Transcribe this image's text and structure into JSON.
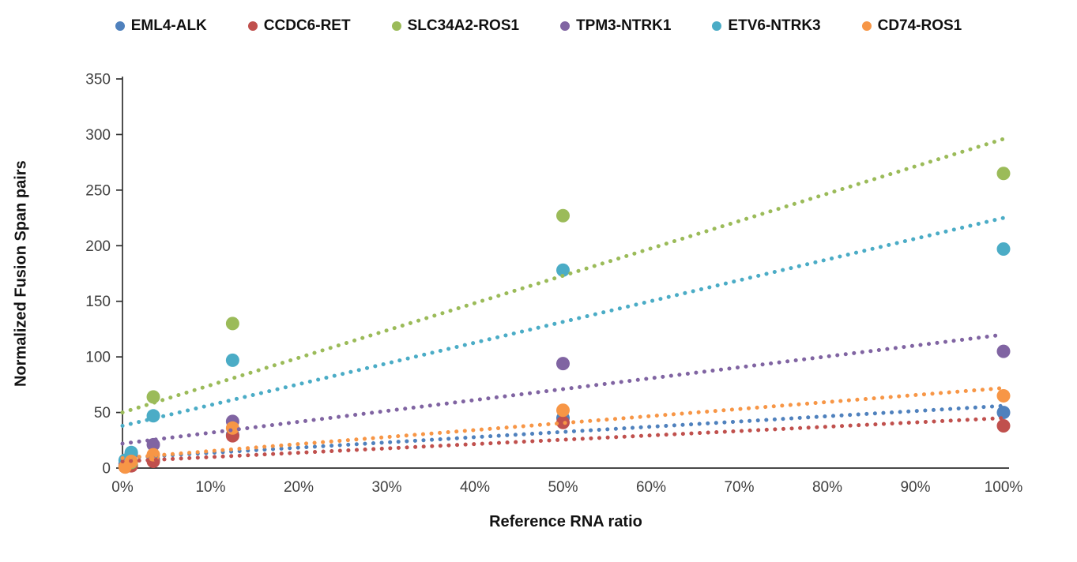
{
  "chart_data": {
    "type": "scatter",
    "title": "",
    "xlabel": "Reference RNA ratio",
    "ylabel": "Normalized Fusion Span pairs",
    "xlim": [
      0,
      100
    ],
    "ylim": [
      0,
      350
    ],
    "x_unit": "%",
    "grid": false,
    "legend_position": "top",
    "marker": "circle",
    "trendline_style": "dotted",
    "x_ticks": [
      0,
      10,
      20,
      30,
      40,
      50,
      60,
      70,
      80,
      90,
      100
    ],
    "x_tick_labels": [
      "0%",
      "10%",
      "20%",
      "30%",
      "40%",
      "50%",
      "60%",
      "70%",
      "80%",
      "90%",
      "100%"
    ],
    "y_ticks": [
      0,
      50,
      100,
      150,
      200,
      250,
      300,
      350
    ],
    "y_tick_labels": [
      "0",
      "50",
      "100",
      "150",
      "200",
      "250",
      "300",
      "350"
    ],
    "x_values_percent": [
      0.3,
      1,
      3.5,
      12.5,
      50,
      100
    ],
    "series": [
      {
        "name": "EML4-ALK",
        "color": "#4F81BD",
        "values": [
          2,
          3,
          8,
          30,
          45,
          50
        ],
        "trendline": {
          "y_at_0": 9,
          "y_at_100": 56
        }
      },
      {
        "name": "CCDC6-RET",
        "color": "#C0504D",
        "values": [
          1,
          2,
          6,
          29,
          41,
          38
        ],
        "trendline": {
          "y_at_0": 6,
          "y_at_100": 45
        }
      },
      {
        "name": "SLC34A2-ROS1",
        "color": "#9BBB59",
        "values": [
          2,
          5,
          64,
          130,
          227,
          265
        ],
        "trendline": {
          "y_at_0": 50,
          "y_at_100": 296
        }
      },
      {
        "name": "TPM3-NTRK1",
        "color": "#8064A2",
        "values": [
          4,
          13,
          21,
          42,
          94,
          105
        ],
        "trendline": {
          "y_at_0": 22,
          "y_at_100": 120
        }
      },
      {
        "name": "ETV6-NTRK3",
        "color": "#4BACC6",
        "values": [
          7,
          14,
          47,
          97,
          178,
          197
        ],
        "trendline": {
          "y_at_0": 38,
          "y_at_100": 225
        }
      },
      {
        "name": "CD74-ROS1",
        "color": "#F79646",
        "values": [
          1,
          6,
          12,
          36,
          52,
          65
        ],
        "trendline": {
          "y_at_0": 9,
          "y_at_100": 72
        }
      }
    ]
  }
}
